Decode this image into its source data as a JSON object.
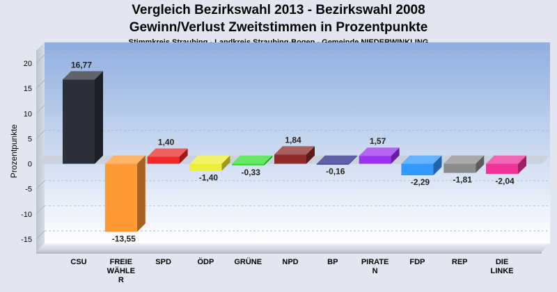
{
  "chart_data": {
    "type": "bar",
    "title": "Vergleich Bezirkswahl 2013 - Bezirkswahl 2008",
    "subtitle": "Gewinn/Verlust Zweitstimmen in Prozentpunkte",
    "caption": "Stimmkreis Straubing - Landkreis Straubing-Bogen - Gemeinde NIEDERWINKLING",
    "ylabel": "Prozentpunkte",
    "xlabel": "",
    "ylim": [
      -17.5,
      22.5
    ],
    "yticks": [
      20,
      15,
      10,
      5,
      0,
      -5,
      -10,
      -15
    ],
    "grid": true,
    "categories": [
      "CSU",
      "FREIE WÄHLER",
      "SPD",
      "ÖDP",
      "GRÜNE",
      "NPD",
      "BP",
      "PIRATEN",
      "FDP",
      "REP",
      "DIE LINKE"
    ],
    "category_labels": [
      [
        "CSU"
      ],
      [
        "FREIE",
        "WÄHLE",
        "R"
      ],
      [
        "SPD"
      ],
      [
        "ÖDP"
      ],
      [
        "GRÜNE"
      ],
      [
        "NPD"
      ],
      [
        "BP"
      ],
      [
        "PIRATE",
        "N"
      ],
      [
        "FDP"
      ],
      [
        "REP"
      ],
      [
        "DIE",
        "LINKE"
      ]
    ],
    "values": [
      16.77,
      -13.55,
      1.4,
      -1.4,
      -0.33,
      1.84,
      -0.16,
      1.57,
      -2.29,
      -1.81,
      -2.04
    ],
    "value_labels": [
      "16,77",
      "-13,55",
      "1,40",
      "-1,40",
      "-0,33",
      "1,84",
      "-0,16",
      "1,57",
      "-2,29",
      "-1,81",
      "-2,04"
    ],
    "colors": [
      "#2b2f3a",
      "#ff9933",
      "#ee2a2a",
      "#eeee33",
      "#33dd33",
      "#8e2a2a",
      "#2a2a8e",
      "#9933ee",
      "#3399ff",
      "#8c8c8c",
      "#ee3399"
    ]
  }
}
